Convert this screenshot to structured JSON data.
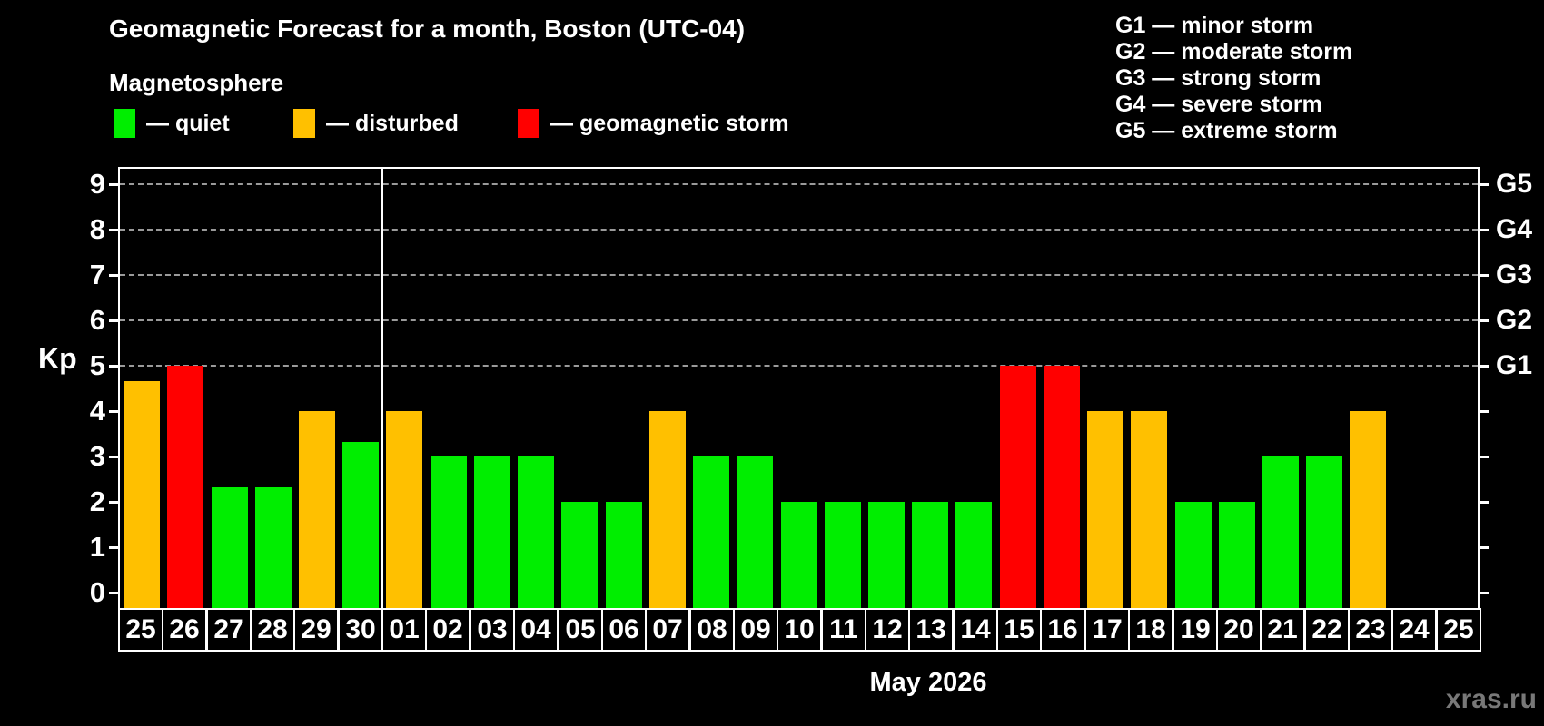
{
  "header": {
    "title": "Geomagnetic Forecast for a month, Boston (UTC-04)",
    "subtitle": "Magnetosphere"
  },
  "legend": {
    "items": [
      {
        "key": "quiet",
        "label": "— quiet",
        "color": "#00ee00"
      },
      {
        "key": "disturbed",
        "label": "— disturbed",
        "color": "#ffc000"
      },
      {
        "key": "storm",
        "label": "— geomagnetic storm",
        "color": "#ff0000"
      }
    ]
  },
  "g_legend": [
    "G1 — minor storm",
    "G2 — moderate storm",
    "G3 — strong storm",
    "G4 — severe storm",
    "G5 — extreme storm"
  ],
  "footer": {
    "month_label": "May 2026",
    "watermark": "xras.ru"
  },
  "chart_data": {
    "type": "bar",
    "title": "Geomagnetic Forecast for a month, Boston (UTC-04)",
    "ylabel": "Kp",
    "xlabel": "May 2026",
    "ylim": [
      0,
      9
    ],
    "grid": "horizontal dashed lines at Kp 5,6,7,8,9",
    "legend_position": "top-left",
    "categories": [
      "25",
      "26",
      "27",
      "28",
      "29",
      "30",
      "01",
      "02",
      "03",
      "04",
      "05",
      "06",
      "07",
      "08",
      "09",
      "10",
      "11",
      "12",
      "13",
      "14",
      "15",
      "16",
      "17",
      "18",
      "19",
      "20",
      "21",
      "22",
      "23",
      "24",
      "25"
    ],
    "values": [
      4.67,
      5,
      2.33,
      2.33,
      4,
      3.33,
      4,
      3,
      3,
      3,
      2,
      2,
      4,
      3,
      3,
      2,
      2,
      2,
      2,
      2,
      5,
      5,
      4,
      4,
      2,
      2,
      3,
      3,
      4,
      null,
      null
    ],
    "statuses": [
      "disturbed",
      "storm",
      "quiet",
      "quiet",
      "disturbed",
      "quiet",
      "disturbed",
      "quiet",
      "quiet",
      "quiet",
      "quiet",
      "quiet",
      "disturbed",
      "quiet",
      "quiet",
      "quiet",
      "quiet",
      "quiet",
      "quiet",
      "quiet",
      "storm",
      "storm",
      "disturbed",
      "disturbed",
      "quiet",
      "quiet",
      "quiet",
      "quiet",
      "disturbed",
      null,
      null
    ],
    "status_colors": {
      "quiet": "#00ee00",
      "disturbed": "#ffc000",
      "storm": "#ff0000"
    },
    "left_ticks": [
      0,
      1,
      2,
      3,
      4,
      5,
      6,
      7,
      8,
      9
    ],
    "right_ticks": [
      0,
      1,
      2,
      3,
      4,
      5,
      6,
      7,
      8,
      9
    ],
    "right_labels": [
      {
        "kp": 5,
        "label": "G1"
      },
      {
        "kp": 6,
        "label": "G2"
      },
      {
        "kp": 7,
        "label": "G3"
      },
      {
        "kp": 8,
        "label": "G4"
      },
      {
        "kp": 9,
        "label": "G5"
      }
    ],
    "gridlines_at": [
      5,
      6,
      7,
      8,
      9
    ],
    "month_separator_after_index": 5
  }
}
